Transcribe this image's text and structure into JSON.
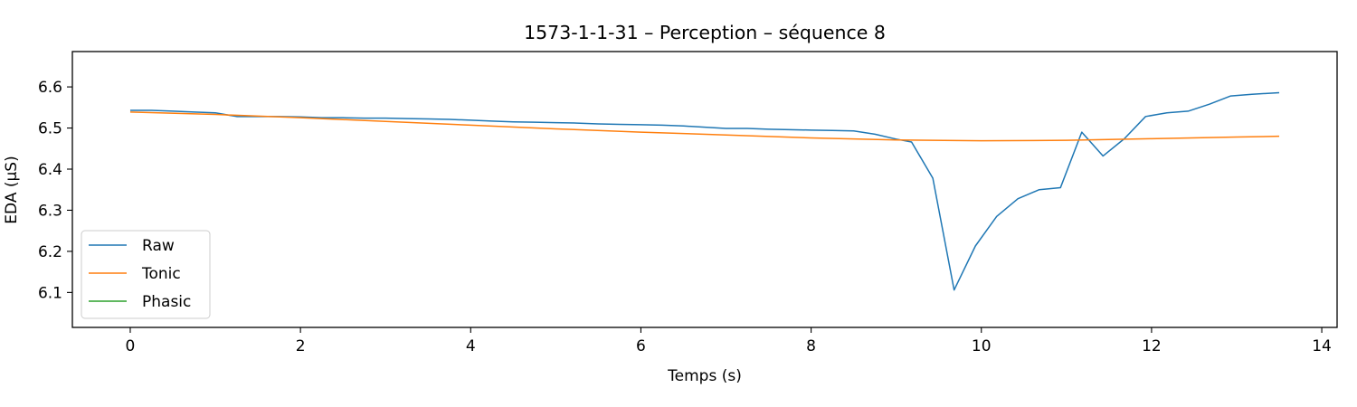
{
  "chart_data": {
    "type": "line",
    "title": "1573-1-1-31 – Perception – séquence 8",
    "xlabel": "Temps (s)",
    "ylabel": "EDA (µS)",
    "xlim": [
      -0.68,
      14.18
    ],
    "ylim": [
      6.015,
      6.686
    ],
    "xticks": [
      0,
      2,
      4,
      6,
      8,
      10,
      12,
      14
    ],
    "xtick_labels": [
      "0",
      "2",
      "4",
      "6",
      "8",
      "10",
      "12",
      "14"
    ],
    "yticks": [
      6.1,
      6.2,
      6.3,
      6.4,
      6.5,
      6.6
    ],
    "ytick_labels": [
      "6.1",
      "6.2",
      "6.3",
      "6.4",
      "6.5",
      "6.6"
    ],
    "grid": false,
    "legend_position": "lower-left",
    "series": [
      {
        "name": "Raw",
        "color": "#1f77b4",
        "x": [
          0,
          0.25,
          0.5,
          0.75,
          1.0,
          1.25,
          1.5,
          1.75,
          2.0,
          2.25,
          2.5,
          2.75,
          3.0,
          3.25,
          3.5,
          3.75,
          4.0,
          4.25,
          4.5,
          4.75,
          5.0,
          5.25,
          5.5,
          5.75,
          6.0,
          6.25,
          6.5,
          6.75,
          7.0,
          7.25,
          7.5,
          7.75,
          8.0,
          8.25,
          8.5,
          8.75,
          9.0,
          9.18,
          9.43,
          9.68,
          9.93,
          10.18,
          10.43,
          10.68,
          10.93,
          11.18,
          11.43,
          11.68,
          11.93,
          12.18,
          12.43,
          12.68,
          12.93,
          13.18,
          13.5
        ],
        "y": [
          6.543,
          6.543,
          6.541,
          6.539,
          6.537,
          6.528,
          6.528,
          6.528,
          6.527,
          6.525,
          6.525,
          6.524,
          6.524,
          6.523,
          6.522,
          6.521,
          6.519,
          6.517,
          6.515,
          6.514,
          6.513,
          6.512,
          6.51,
          6.509,
          6.508,
          6.507,
          6.505,
          6.502,
          6.499,
          6.499,
          6.497,
          6.496,
          6.495,
          6.494,
          6.493,
          6.485,
          6.473,
          6.466,
          6.378,
          6.106,
          6.213,
          6.285,
          6.328,
          6.35,
          6.355,
          6.49,
          6.432,
          6.474,
          6.528,
          6.537,
          6.541,
          6.558,
          6.578,
          6.582,
          6.586
        ]
      },
      {
        "name": "Tonic",
        "color": "#ff7f0e",
        "x": [
          0,
          1,
          2,
          3,
          4,
          5,
          6,
          7,
          8,
          9,
          10,
          11,
          12,
          13,
          13.5
        ],
        "y": [
          6.539,
          6.533,
          6.525,
          6.516,
          6.507,
          6.498,
          6.49,
          6.483,
          6.476,
          6.471,
          6.469,
          6.47,
          6.474,
          6.478,
          6.48
        ]
      },
      {
        "name": "Phasic",
        "color": "#2ca02c",
        "x": [],
        "y": []
      }
    ]
  }
}
